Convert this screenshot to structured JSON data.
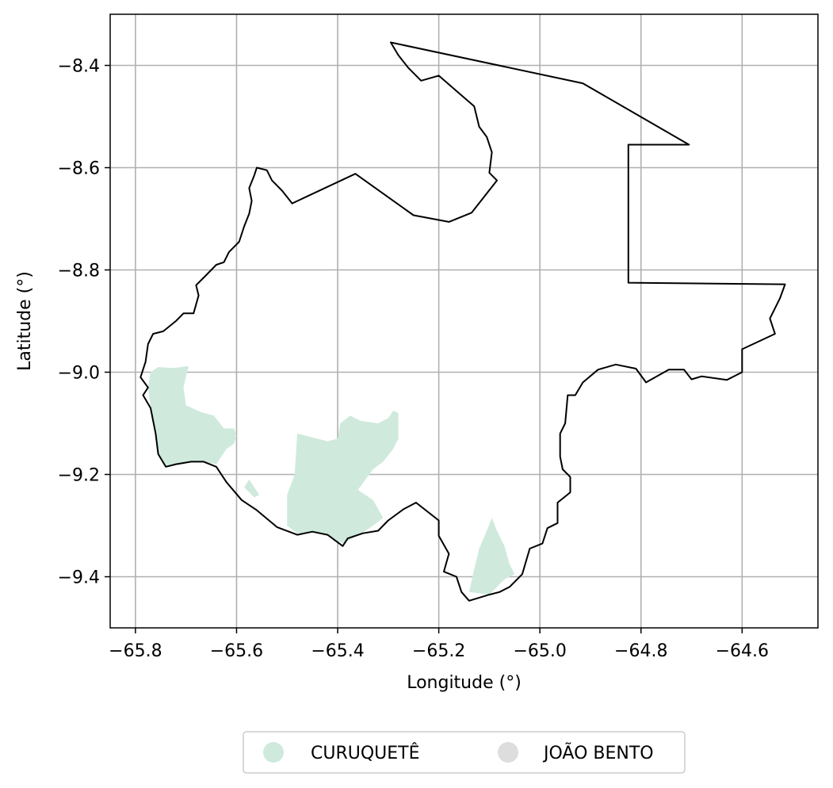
{
  "chart_data": {
    "type": "map",
    "xlabel": "Longitude (°)",
    "ylabel": "Latitude (°)",
    "xlim": [
      -65.85,
      -64.45
    ],
    "ylim": [
      -9.5,
      -8.3
    ],
    "xticks": [
      {
        "value": -65.8,
        "label": "−65.8"
      },
      {
        "value": -65.6,
        "label": "−65.6"
      },
      {
        "value": -65.4,
        "label": "−65.4"
      },
      {
        "value": -65.2,
        "label": "−65.2"
      },
      {
        "value": -65.0,
        "label": "−65.0"
      },
      {
        "value": -64.8,
        "label": "−64.8"
      },
      {
        "value": -64.6,
        "label": "−64.6"
      }
    ],
    "yticks": [
      {
        "value": -8.4,
        "label": "−8.4"
      },
      {
        "value": -8.6,
        "label": "−8.6"
      },
      {
        "value": -8.8,
        "label": "−8.8"
      },
      {
        "value": -9.0,
        "label": "−9.0"
      },
      {
        "value": -9.2,
        "label": "−9.2"
      },
      {
        "value": -9.4,
        "label": "−9.4"
      }
    ],
    "grid": true,
    "legend_position": "bottom-center",
    "legend": [
      {
        "label": "CURUQUETÊ",
        "color": "#cfeadc"
      },
      {
        "label": "JOÃO BENTO",
        "color": "#dddddd"
      }
    ],
    "boundary": {
      "name": "municipality-boundary",
      "color": "#000000",
      "coords": [
        [
          -65.295,
          -8.355
        ],
        [
          -64.915,
          -8.435
        ],
        [
          -64.705,
          -8.555
        ],
        [
          -64.825,
          -8.555
        ],
        [
          -64.825,
          -8.825
        ],
        [
          -64.515,
          -8.828
        ],
        [
          -64.525,
          -8.855
        ],
        [
          -64.545,
          -8.895
        ],
        [
          -64.535,
          -8.925
        ],
        [
          -64.6,
          -8.955
        ],
        [
          -64.6,
          -9.0
        ],
        [
          -64.63,
          -9.015
        ],
        [
          -64.68,
          -9.008
        ],
        [
          -64.7,
          -9.014
        ],
        [
          -64.715,
          -8.995
        ],
        [
          -64.745,
          -8.995
        ],
        [
          -64.79,
          -9.02
        ],
        [
          -64.81,
          -8.993
        ],
        [
          -64.85,
          -8.985
        ],
        [
          -64.885,
          -8.995
        ],
        [
          -64.915,
          -9.02
        ],
        [
          -64.93,
          -9.045
        ],
        [
          -64.945,
          -9.045
        ],
        [
          -64.95,
          -9.1
        ],
        [
          -64.96,
          -9.12
        ],
        [
          -64.96,
          -9.165
        ],
        [
          -64.955,
          -9.19
        ],
        [
          -64.94,
          -9.205
        ],
        [
          -64.94,
          -9.235
        ],
        [
          -64.965,
          -9.255
        ],
        [
          -64.965,
          -9.295
        ],
        [
          -64.985,
          -9.305
        ],
        [
          -64.995,
          -9.335
        ],
        [
          -65.02,
          -9.345
        ],
        [
          -65.035,
          -9.395
        ],
        [
          -65.06,
          -9.42
        ],
        [
          -65.08,
          -9.43
        ],
        [
          -65.1,
          -9.435
        ],
        [
          -65.14,
          -9.447
        ],
        [
          -65.155,
          -9.43
        ],
        [
          -65.165,
          -9.4
        ],
        [
          -65.19,
          -9.39
        ],
        [
          -65.18,
          -9.355
        ],
        [
          -65.2,
          -9.32
        ],
        [
          -65.2,
          -9.29
        ],
        [
          -65.245,
          -9.255
        ],
        [
          -65.27,
          -9.268
        ],
        [
          -65.3,
          -9.29
        ],
        [
          -65.32,
          -9.31
        ],
        [
          -65.35,
          -9.315
        ],
        [
          -65.38,
          -9.325
        ],
        [
          -65.39,
          -9.34
        ],
        [
          -65.42,
          -9.318
        ],
        [
          -65.45,
          -9.312
        ],
        [
          -65.48,
          -9.318
        ],
        [
          -65.52,
          -9.303
        ],
        [
          -65.56,
          -9.27
        ],
        [
          -65.59,
          -9.25
        ],
        [
          -65.62,
          -9.215
        ],
        [
          -65.64,
          -9.185
        ],
        [
          -65.665,
          -9.175
        ],
        [
          -65.69,
          -9.175
        ],
        [
          -65.72,
          -9.18
        ],
        [
          -65.74,
          -9.185
        ],
        [
          -65.755,
          -9.16
        ],
        [
          -65.76,
          -9.12
        ],
        [
          -65.77,
          -9.07
        ],
        [
          -65.785,
          -9.045
        ],
        [
          -65.775,
          -9.03
        ],
        [
          -65.79,
          -9.01
        ],
        [
          -65.78,
          -8.98
        ],
        [
          -65.775,
          -8.945
        ],
        [
          -65.765,
          -8.925
        ],
        [
          -65.745,
          -8.92
        ],
        [
          -65.72,
          -8.9
        ],
        [
          -65.705,
          -8.885
        ],
        [
          -65.685,
          -8.885
        ],
        [
          -65.675,
          -8.85
        ],
        [
          -65.68,
          -8.83
        ],
        [
          -65.66,
          -8.81
        ],
        [
          -65.64,
          -8.79
        ],
        [
          -65.625,
          -8.785
        ],
        [
          -65.615,
          -8.765
        ],
        [
          -65.595,
          -8.745
        ],
        [
          -65.585,
          -8.715
        ],
        [
          -65.575,
          -8.69
        ],
        [
          -65.57,
          -8.665
        ],
        [
          -65.575,
          -8.64
        ],
        [
          -65.565,
          -8.615
        ],
        [
          -65.56,
          -8.6
        ],
        [
          -65.54,
          -8.605
        ],
        [
          -65.53,
          -8.625
        ],
        [
          -65.51,
          -8.645
        ],
        [
          -65.49,
          -8.67
        ],
        [
          -65.365,
          -8.612
        ],
        [
          -65.25,
          -8.693
        ],
        [
          -65.18,
          -8.706
        ],
        [
          -65.135,
          -8.688
        ],
        [
          -65.085,
          -8.625
        ],
        [
          -65.1,
          -8.61
        ],
        [
          -65.095,
          -8.57
        ],
        [
          -65.105,
          -8.54
        ],
        [
          -65.12,
          -8.52
        ],
        [
          -65.13,
          -8.48
        ],
        [
          -65.165,
          -8.45
        ],
        [
          -65.2,
          -8.42
        ],
        [
          -65.235,
          -8.43
        ],
        [
          -65.26,
          -8.405
        ],
        [
          -65.28,
          -8.38
        ],
        [
          -65.295,
          -8.355
        ]
      ]
    },
    "regions": [
      {
        "name": "CURUQUETÊ",
        "color": "#cfeadc",
        "polygons": [
          [
            [
              -65.755,
              -8.99
            ],
            [
              -65.725,
              -8.992
            ],
            [
              -65.695,
              -8.988
            ],
            [
              -65.705,
              -9.03
            ],
            [
              -65.7,
              -9.065
            ],
            [
              -65.67,
              -9.078
            ],
            [
              -65.645,
              -9.085
            ],
            [
              -65.625,
              -9.11
            ],
            [
              -65.605,
              -9.11
            ],
            [
              -65.6,
              -9.125
            ],
            [
              -65.605,
              -9.14
            ],
            [
              -65.62,
              -9.15
            ],
            [
              -65.64,
              -9.18
            ],
            [
              -65.665,
              -9.175
            ],
            [
              -65.69,
              -9.175
            ],
            [
              -65.72,
              -9.18
            ],
            [
              -65.74,
              -9.185
            ],
            [
              -65.755,
              -9.16
            ],
            [
              -65.76,
              -9.12
            ],
            [
              -65.77,
              -9.07
            ],
            [
              -65.775,
              -9.03
            ],
            [
              -65.77,
              -9.0
            ]
          ],
          [
            [
              -65.575,
              -9.21
            ],
            [
              -65.555,
              -9.24
            ],
            [
              -65.565,
              -9.245
            ],
            [
              -65.585,
              -9.225
            ]
          ],
          [
            [
              -65.48,
              -9.12
            ],
            [
              -65.485,
              -9.2
            ],
            [
              -65.5,
              -9.24
            ],
            [
              -65.5,
              -9.3
            ],
            [
              -65.48,
              -9.315
            ],
            [
              -65.45,
              -9.312
            ],
            [
              -65.42,
              -9.318
            ],
            [
              -65.39,
              -9.335
            ],
            [
              -65.36,
              -9.32
            ],
            [
              -65.33,
              -9.3
            ],
            [
              -65.31,
              -9.285
            ],
            [
              -65.33,
              -9.25
            ],
            [
              -65.36,
              -9.23
            ],
            [
              -65.33,
              -9.19
            ],
            [
              -65.31,
              -9.175
            ],
            [
              -65.29,
              -9.15
            ],
            [
              -65.28,
              -9.13
            ],
            [
              -65.28,
              -9.08
            ],
            [
              -65.29,
              -9.075
            ],
            [
              -65.3,
              -9.09
            ],
            [
              -65.32,
              -9.1
            ],
            [
              -65.355,
              -9.095
            ],
            [
              -65.375,
              -9.085
            ],
            [
              -65.395,
              -9.1
            ],
            [
              -65.4,
              -9.13
            ],
            [
              -65.42,
              -9.135
            ]
          ],
          [
            [
              -65.095,
              -9.285
            ],
            [
              -65.085,
              -9.31
            ],
            [
              -65.07,
              -9.34
            ],
            [
              -65.06,
              -9.375
            ],
            [
              -65.05,
              -9.395
            ],
            [
              -65.07,
              -9.405
            ],
            [
              -65.1,
              -9.435
            ],
            [
              -65.14,
              -9.43
            ],
            [
              -65.13,
              -9.385
            ],
            [
              -65.12,
              -9.345
            ],
            [
              -65.105,
              -9.31
            ]
          ]
        ]
      },
      {
        "name": "JOÃO BENTO",
        "color": "#dddddd",
        "polygons": []
      }
    ]
  }
}
